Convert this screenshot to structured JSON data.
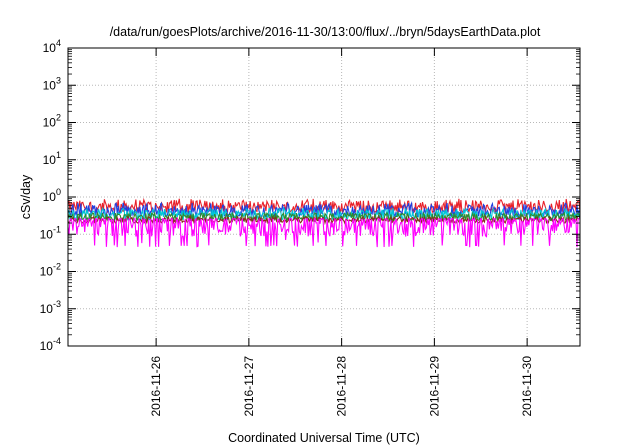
{
  "chart_data": {
    "type": "area",
    "title": "/data/run/goesPlots/archive/2016-11-30/13:00/flux/../bryn/5daysEarthData.plot",
    "xlabel": "Coordinated Universal Time (UTC)",
    "ylabel": "cSv/day",
    "yscale": "log",
    "ylim_exponents": [
      -4,
      4
    ],
    "y_ticks": [
      {
        "base": "10",
        "exp": "4"
      },
      {
        "base": "10",
        "exp": "3"
      },
      {
        "base": "10",
        "exp": "2"
      },
      {
        "base": "10",
        "exp": "1"
      },
      {
        "base": "10",
        "exp": "0"
      },
      {
        "base": "10",
        "exp": "-1"
      },
      {
        "base": "10",
        "exp": "-2"
      },
      {
        "base": "10",
        "exp": "-3"
      },
      {
        "base": "10",
        "exp": "-4"
      }
    ],
    "xlim_days": [
      -0.95,
      4.57
    ],
    "x_ticks": [
      "2016-11-26",
      "2016-11-27",
      "2016-11-28",
      "2016-11-29",
      "2016-11-30"
    ],
    "x_tick_days": [
      0,
      1,
      2,
      3,
      4
    ],
    "grid": true,
    "series": [
      {
        "color": "#e8202a",
        "typical_value": 0.55,
        "min": 0.38,
        "max": 0.9
      },
      {
        "color": "#2040e0",
        "typical_value": 0.42,
        "min": 0.3,
        "max": 0.7
      },
      {
        "color": "#00c8d8",
        "typical_value": 0.33,
        "min": 0.24,
        "max": 0.5
      },
      {
        "color": "#2e8b2e",
        "typical_value": 0.29,
        "min": 0.22,
        "max": 0.38
      },
      {
        "color": "#8a2a1a",
        "typical_value": 0.24,
        "min": 0.2,
        "max": 0.3
      },
      {
        "color": "#ff00ff",
        "typical_value": 0.19,
        "min": 0.045,
        "max": 0.26
      }
    ],
    "spikes_magenta": [
      {
        "day": -0.15,
        "value": 0.058
      },
      {
        "day": 1.4,
        "value": 0.07
      },
      {
        "day": 1.75,
        "value": 0.06
      },
      {
        "day": 3.38,
        "value": 0.045
      },
      {
        "day": 3.45,
        "value": 0.05
      }
    ]
  }
}
